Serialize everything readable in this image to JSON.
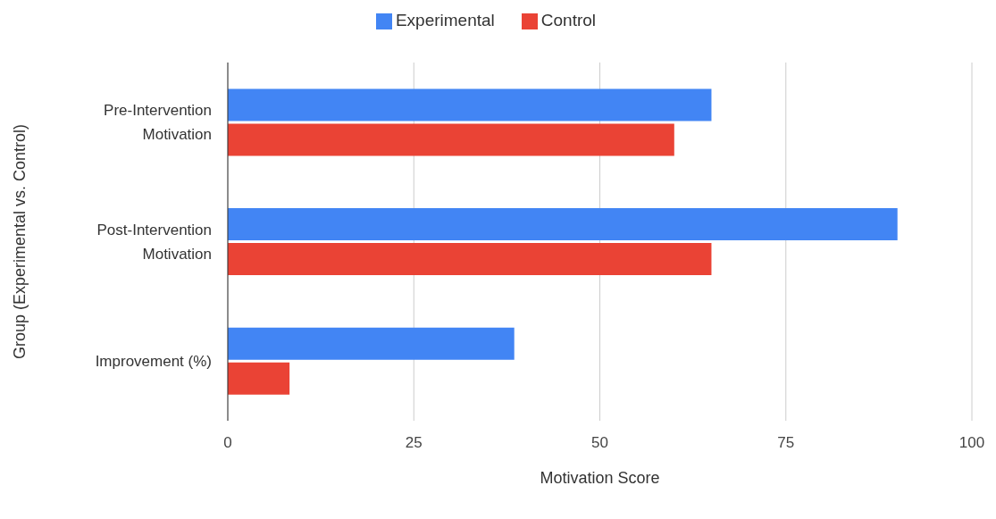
{
  "chart_data": {
    "type": "bar",
    "orientation": "horizontal",
    "xlabel": "Motivation Score",
    "ylabel": "Group (Experimental vs. Control)",
    "categories": [
      "Pre-Intervention Motivation",
      "Post-Intervention Motivation",
      "Improvement (%)"
    ],
    "series": [
      {
        "name": "Experimental",
        "color": "#4285f4",
        "values": [
          65,
          90,
          38.5
        ]
      },
      {
        "name": "Control",
        "color": "#ea4335",
        "values": [
          60,
          65,
          8.3
        ]
      }
    ],
    "xlim": [
      0,
      100
    ],
    "xticks": [
      0,
      25,
      50,
      75,
      100
    ],
    "grid": "x",
    "legend": "top"
  }
}
